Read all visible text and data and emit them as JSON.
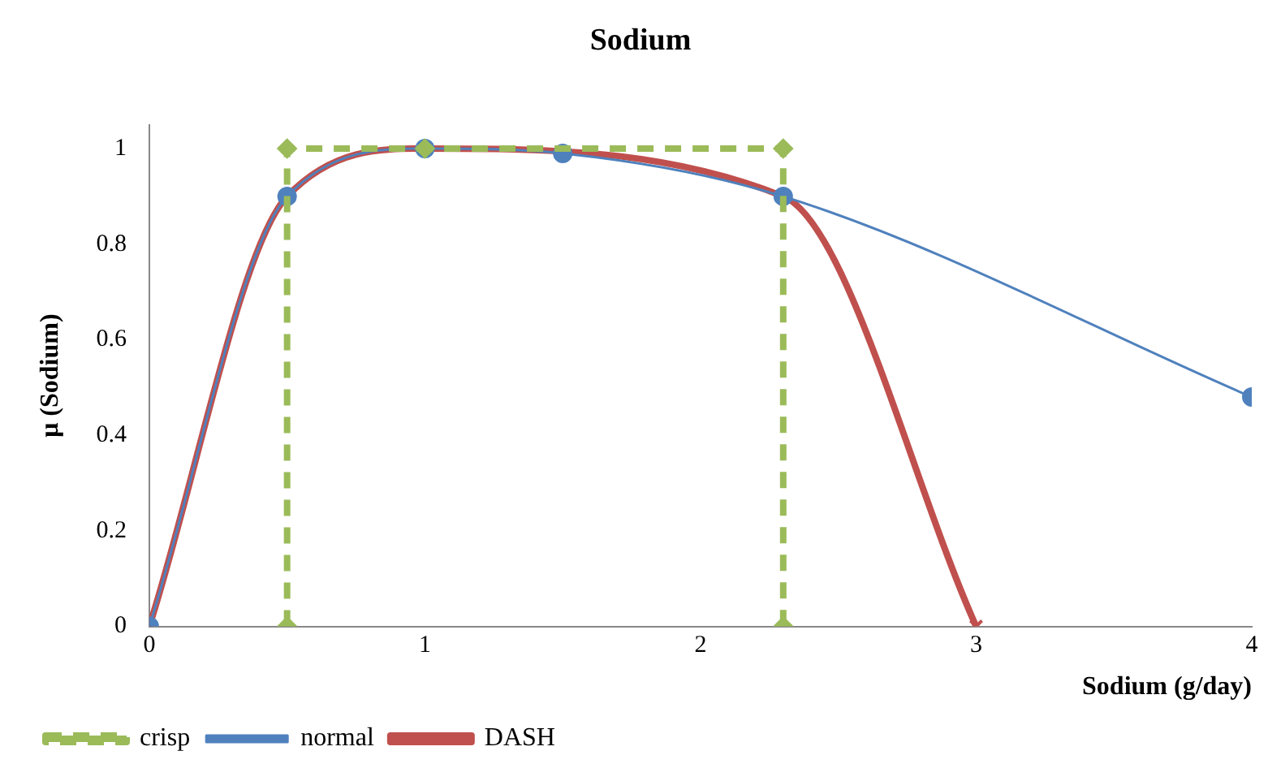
{
  "chart_data": {
    "type": "line",
    "title": "Sodium",
    "xlabel": "Sodium (g/day)",
    "ylabel": "μ (Sodium)",
    "xlim": [
      0,
      4
    ],
    "xticks": [
      0,
      1,
      2,
      3,
      4
    ],
    "ylim": [
      0,
      1.05
    ],
    "yticks": [
      0,
      0.2,
      0.4,
      0.6,
      0.8,
      1
    ],
    "grid": false,
    "legend": "bottom left",
    "series": [
      {
        "name": "crisp",
        "color": "#9bbb59",
        "x": [
          0.5,
          0.5,
          1,
          2.3,
          2.3
        ],
        "values": [
          0,
          1,
          1,
          1,
          0
        ],
        "marker": "diamond",
        "line_style": "dashed"
      },
      {
        "name": "normal",
        "color": "#4f81bd",
        "x": [
          0,
          0.5,
          1,
          1.5,
          2.3,
          4
        ],
        "values": [
          0,
          0.9,
          1,
          0.99,
          0.9,
          0.48
        ],
        "marker": "circle",
        "line_style": "solid"
      },
      {
        "name": "DASH",
        "color": "#c0504d",
        "x": [
          0,
          0.5,
          1,
          2.3,
          3
        ],
        "values": [
          0,
          0.9,
          1,
          0.9,
          0
        ],
        "marker": "cross",
        "line_style": "solid"
      }
    ]
  }
}
